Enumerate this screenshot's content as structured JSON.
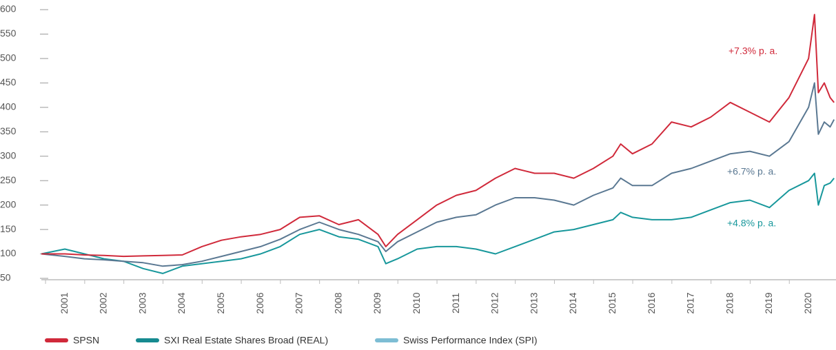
{
  "chart_data": {
    "type": "line",
    "x": [
      2000.4,
      2001,
      2001.5,
      2002,
      2002.5,
      2003,
      2003.5,
      2004,
      2004.5,
      2005,
      2005.5,
      2006,
      2006.5,
      2007,
      2007.5,
      2008,
      2008.5,
      2009,
      2009.2,
      2009.5,
      2010,
      2010.5,
      2011,
      2011.5,
      2012,
      2012.5,
      2013,
      2013.5,
      2014,
      2014.5,
      2015,
      2015.2,
      2015.5,
      2016,
      2016.5,
      2017,
      2017.5,
      2018,
      2018.5,
      2019,
      2019.5,
      2020,
      2020.15,
      2020.25,
      2020.4,
      2020.55,
      2020.65
    ],
    "series": [
      {
        "name": "SPSN",
        "color": "#d0293a",
        "legend_color": "#d0293a",
        "values": [
          100,
          100,
          98,
          97,
          95,
          96,
          97,
          98,
          115,
          128,
          135,
          140,
          150,
          175,
          178,
          160,
          170,
          140,
          115,
          140,
          170,
          200,
          220,
          230,
          255,
          275,
          265,
          265,
          255,
          275,
          300,
          325,
          305,
          325,
          370,
          360,
          380,
          410,
          390,
          370,
          420,
          500,
          590,
          430,
          450,
          420,
          410
        ]
      },
      {
        "name": "SXI Real Estate Shares Broad (REAL)",
        "color": "#17979b",
        "legend_color": "#168a90",
        "values": [
          100,
          110,
          100,
          90,
          85,
          70,
          60,
          75,
          80,
          85,
          90,
          100,
          115,
          140,
          150,
          135,
          130,
          115,
          80,
          90,
          110,
          115,
          115,
          110,
          100,
          115,
          130,
          145,
          150,
          160,
          170,
          185,
          175,
          170,
          170,
          175,
          190,
          205,
          210,
          195,
          230,
          250,
          265,
          200,
          240,
          245,
          255
        ]
      },
      {
        "name": "Swiss Performance Index (SPI)",
        "color": "#5a7892",
        "legend_color": "#7dbdd4",
        "values": [
          100,
          95,
          90,
          88,
          85,
          82,
          75,
          78,
          85,
          95,
          105,
          115,
          130,
          150,
          165,
          150,
          140,
          125,
          105,
          125,
          145,
          165,
          175,
          180,
          200,
          215,
          215,
          210,
          200,
          220,
          235,
          255,
          240,
          240,
          265,
          275,
          290,
          305,
          310,
          300,
          330,
          400,
          450,
          345,
          370,
          360,
          375
        ]
      }
    ],
    "annotations": [
      {
        "text": "+7.3% p. a.",
        "color": "#d0293a"
      },
      {
        "text": "+6.7% p. a.",
        "color": "#5a7892"
      },
      {
        "text": "+4.8% p. a.",
        "color": "#17979b"
      }
    ],
    "xlim": [
      2000.4,
      2020.7
    ],
    "xticks": [
      2001,
      2002,
      2003,
      2004,
      2005,
      2006,
      2007,
      2008,
      2009,
      2010,
      2011,
      2012,
      2013,
      2014,
      2015,
      2016,
      2017,
      2018,
      2019,
      2020
    ],
    "ylim": [
      50,
      600
    ],
    "yticks": [
      50,
      100,
      150,
      200,
      250,
      300,
      350,
      400,
      450,
      500,
      550,
      600
    ],
    "legend": "bottom-left"
  }
}
